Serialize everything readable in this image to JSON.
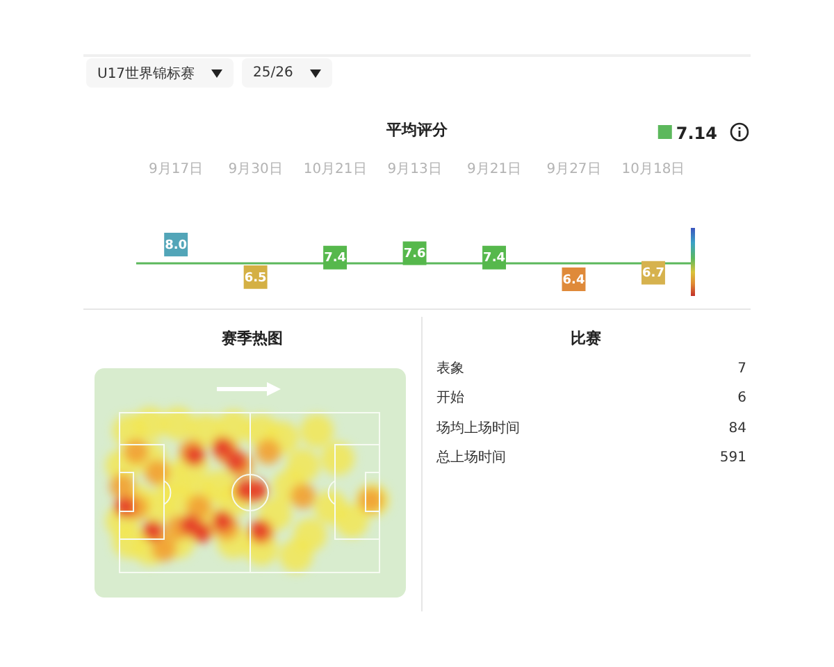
{
  "chart_data": [
    {
      "type": "other",
      "annotations": [
        "U17世界锦标赛",
        "25/26"
      ]
    },
    {
      "type": "scatter",
      "title": "平均评分",
      "categories": [
        "9月17日",
        "9月30日",
        "10月21日",
        "9月13日",
        "9月21日",
        "9月27日",
        "10月18日"
      ],
      "values": [
        8.0,
        6.5,
        7.4,
        7.6,
        7.4,
        6.4,
        6.7
      ],
      "value_labels": [
        "8.0",
        "6.5",
        "7.4",
        "7.6",
        "7.4",
        "6.4",
        "6.7"
      ],
      "colors": [
        "#52a5b8",
        "#d4b044",
        "#56b84c",
        "#56b84c",
        "#56b84c",
        "#df8a3a",
        "#d6b24e"
      ],
      "marker": "square",
      "tick_labels": "x",
      "ref_lines": [
        {
          "axis": "y",
          "value": 7.14,
          "label": "7.14",
          "color": "#5cb85c"
        }
      ]
    },
    {
      "type": "other",
      "title": "赛季热图"
    },
    {
      "type": "other",
      "title": "比赛",
      "categories": [
        "表象",
        "开始",
        "场均上场时间",
        "总上场时间"
      ],
      "values": [
        7,
        6,
        84,
        591
      ],
      "data_labels": true
    }
  ]
}
